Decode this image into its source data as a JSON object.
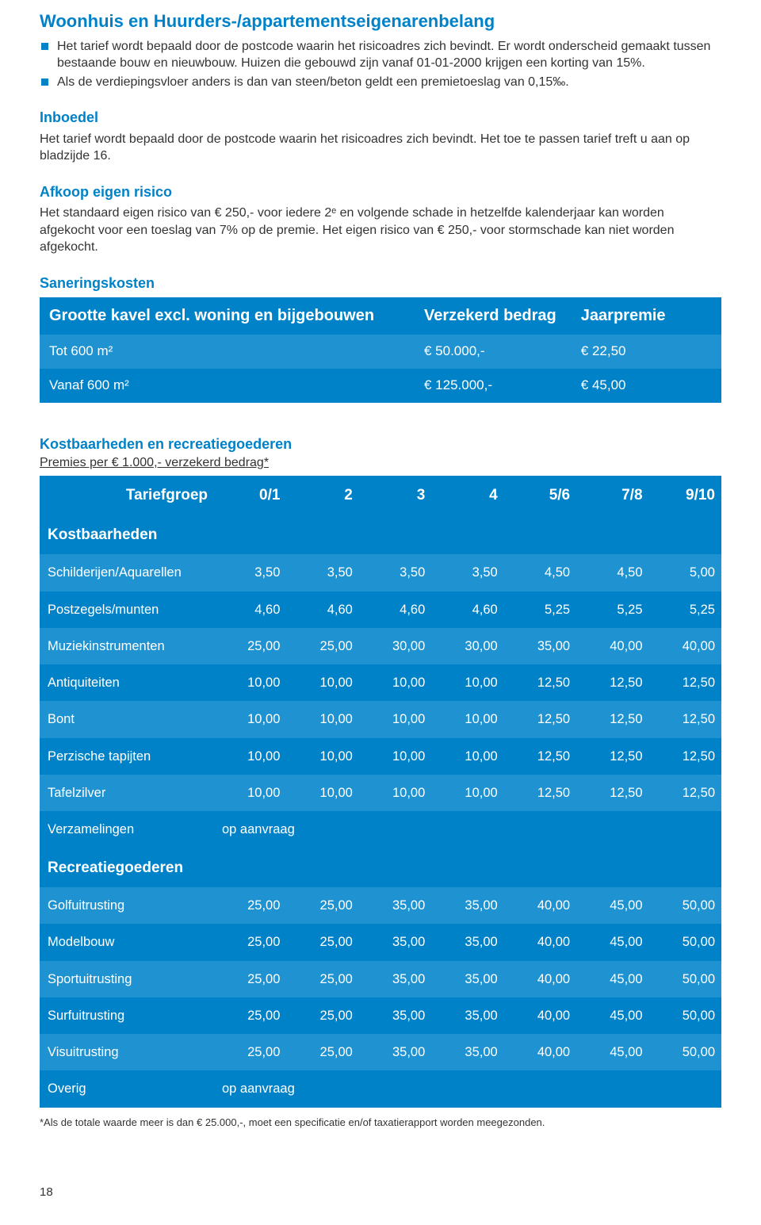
{
  "colors": {
    "accent": "#0082c8",
    "row_light": "#1f93d1",
    "row_dark": "#0082c8",
    "text": "#333333",
    "bg": "#ffffff"
  },
  "section1": {
    "title": "Woonhuis en Huurders-/appartementseigenarenbelang",
    "bullets": [
      "Het tarief wordt bepaald door de postcode waarin het risicoadres zich bevindt. Er wordt onderscheid gemaakt tussen bestaande bouw en nieuwbouw. Huizen die gebouwd zijn vanaf 01-01-2000 krijgen een korting van 15%.",
      "Als de verdiepingsvloer anders is dan van steen/beton geldt een premietoeslag van 0,15‰."
    ]
  },
  "inboedel": {
    "title": "Inboedel",
    "text": "Het tarief wordt bepaald door de postcode waarin het risicoadres zich bevindt. Het toe te passen tarief treft u aan op bladzijde 16."
  },
  "afkoop": {
    "title": "Afkoop eigen risico",
    "text": "Het standaard eigen risico van € 250,- voor iedere 2ᵉ en volgende schade in hetzelfde kalenderjaar kan worden afgekocht voor een toeslag van 7% op de premie. Het eigen risico van € 250,- voor stormschade kan niet worden afgekocht."
  },
  "sanering": {
    "title": "Saneringskosten",
    "header": {
      "c1": "Grootte kavel excl. woning en bijgebouwen",
      "c2": "Verzekerd bedrag",
      "c3": "Jaarpremie"
    },
    "rows": [
      {
        "label": "Tot 600 m²",
        "amount": "€   50.000,-",
        "premium": "€ 22,50"
      },
      {
        "label": "Vanaf 600 m²",
        "amount": "€ 125.000,-",
        "premium": "€ 45,00"
      }
    ]
  },
  "kostbaar": {
    "title": "Kostbaarheden en recreatiegoederen",
    "subtitle": "Premies per € 1.000,- verzekerd bedrag*",
    "groupLabel": "Tariefgroep",
    "cols": [
      "0/1",
      "2",
      "3",
      "4",
      "5/6",
      "7/8",
      "9/10"
    ],
    "section1_label": "Kostbaarheden",
    "section2_label": "Recreatiegoederen",
    "rows1": [
      {
        "label": "Schilderijen/Aquarellen",
        "v": [
          "3,50",
          "3,50",
          "3,50",
          "3,50",
          "4,50",
          "4,50",
          "5,00"
        ]
      },
      {
        "label": "Postzegels/munten",
        "v": [
          "4,60",
          "4,60",
          "4,60",
          "4,60",
          "5,25",
          "5,25",
          "5,25"
        ]
      },
      {
        "label": "Muziekinstrumenten",
        "v": [
          "25,00",
          "25,00",
          "30,00",
          "30,00",
          "35,00",
          "40,00",
          "40,00"
        ]
      },
      {
        "label": "Antiquiteiten",
        "v": [
          "10,00",
          "10,00",
          "10,00",
          "10,00",
          "12,50",
          "12,50",
          "12,50"
        ]
      },
      {
        "label": "Bont",
        "v": [
          "10,00",
          "10,00",
          "10,00",
          "10,00",
          "12,50",
          "12,50",
          "12,50"
        ]
      },
      {
        "label": "Perzische tapijten",
        "v": [
          "10,00",
          "10,00",
          "10,00",
          "10,00",
          "12,50",
          "12,50",
          "12,50"
        ]
      },
      {
        "label": "Tafelzilver",
        "v": [
          "10,00",
          "10,00",
          "10,00",
          "10,00",
          "12,50",
          "12,50",
          "12,50"
        ]
      },
      {
        "label": "Verzamelingen",
        "op": "op aanvraag"
      }
    ],
    "rows2": [
      {
        "label": "Golfuitrusting",
        "v": [
          "25,00",
          "25,00",
          "35,00",
          "35,00",
          "40,00",
          "45,00",
          "50,00"
        ]
      },
      {
        "label": "Modelbouw",
        "v": [
          "25,00",
          "25,00",
          "35,00",
          "35,00",
          "40,00",
          "45,00",
          "50,00"
        ]
      },
      {
        "label": "Sportuitrusting",
        "v": [
          "25,00",
          "25,00",
          "35,00",
          "35,00",
          "40,00",
          "45,00",
          "50,00"
        ]
      },
      {
        "label": "Surfuitrusting",
        "v": [
          "25,00",
          "25,00",
          "35,00",
          "35,00",
          "40,00",
          "45,00",
          "50,00"
        ]
      },
      {
        "label": "Visuitrusting",
        "v": [
          "25,00",
          "25,00",
          "35,00",
          "35,00",
          "40,00",
          "45,00",
          "50,00"
        ]
      },
      {
        "label": "Overig",
        "op": "op aanvraag"
      }
    ],
    "footnote": "*Als de totale waarde meer is dan € 25.000,-, moet een specificatie en/of taxatierapport worden meegezonden."
  },
  "pageNumber": "18"
}
